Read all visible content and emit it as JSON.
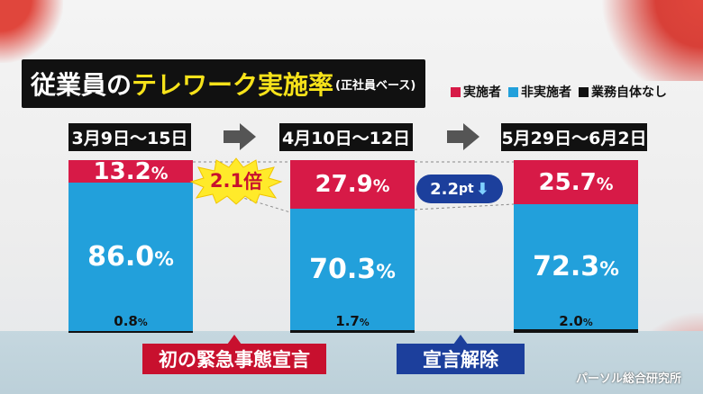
{
  "title": {
    "main_a": "従業員の",
    "main_b": "テレワーク実施率",
    "sub": "(正社員ベース)"
  },
  "legend": [
    {
      "label": "実施者",
      "color": "#d71a47"
    },
    {
      "label": "非実施者",
      "color": "#22a0db"
    },
    {
      "label": "業務自体なし",
      "color": "#111111"
    }
  ],
  "chart_data": {
    "type": "bar",
    "stacked": true,
    "categories": [
      "3月9日〜15日",
      "4月10日〜12日",
      "5月29日〜6月2日"
    ],
    "series": [
      {
        "name": "実施者",
        "values": [
          13.2,
          27.9,
          25.7
        ],
        "labels": [
          "13.2",
          "27.9",
          "25.7"
        ]
      },
      {
        "name": "非実施者",
        "values": [
          86.0,
          70.3,
          72.3
        ],
        "labels": [
          "86.0",
          "70.3",
          "72.3"
        ]
      },
      {
        "name": "業務自体なし",
        "values": [
          0.8,
          1.7,
          2.0
        ],
        "labels": [
          "0.8",
          "1.7",
          "2.0"
        ]
      }
    ],
    "unit": "%",
    "ylim": [
      0,
      100
    ],
    "annotations": [
      {
        "between": [
          "3月9日〜15日",
          "4月10日〜12日"
        ],
        "value": "2.1",
        "unit": "倍"
      },
      {
        "between": [
          "4月10日〜12日",
          "5月29日〜6月2日"
        ],
        "value": "2.2",
        "unit": "pt",
        "direction": "down"
      }
    ]
  },
  "events": [
    {
      "label": "初の緊急事態宣言",
      "color": "#c8102e"
    },
    {
      "label": "宣言解除",
      "color": "#1c3f9c"
    }
  ],
  "source": "パーソル総合研究所"
}
